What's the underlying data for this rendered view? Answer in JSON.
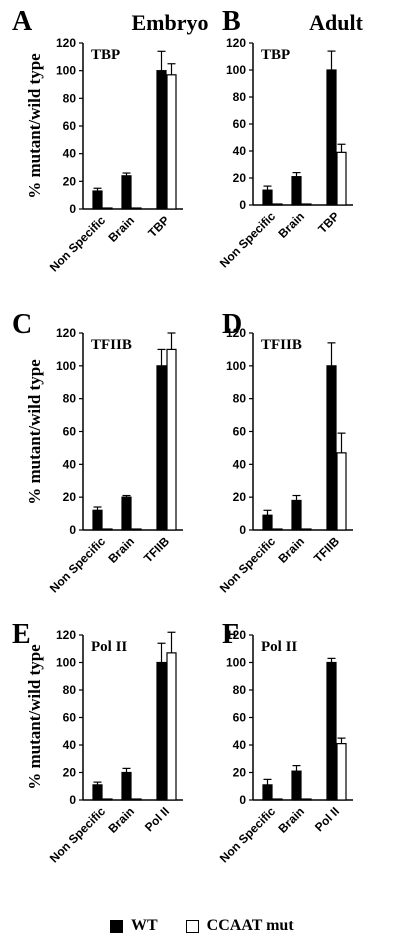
{
  "column_titles": [
    "Embryo",
    "Adult"
  ],
  "ylabel": "% mutant/wild type",
  "legend": [
    {
      "label": "WT",
      "color": "#000000"
    },
    {
      "label": "CCAAT mut",
      "color": "#ffffff"
    }
  ],
  "colors": {
    "wt": "#000000",
    "mut": "#ffffff",
    "axis": "#000000"
  },
  "chart_data": [
    {
      "panel": "A",
      "type": "bar",
      "title": "TBP",
      "categories": [
        "Non Specific",
        "Brain",
        "TBP"
      ],
      "ylim": [
        0,
        120
      ],
      "yticks": [
        0,
        20,
        40,
        60,
        80,
        100,
        120
      ],
      "series": [
        {
          "name": "WT",
          "values": [
            13,
            24,
            100
          ],
          "errors": [
            2,
            2,
            14
          ]
        },
        {
          "name": "CCAAT mut",
          "values": [
            0,
            0,
            97
          ],
          "errors": [
            0,
            0,
            8
          ]
        }
      ]
    },
    {
      "panel": "B",
      "type": "bar",
      "title": "TBP",
      "categories": [
        "Non Specific",
        "Brain",
        "TBP"
      ],
      "ylim": [
        0,
        120
      ],
      "yticks": [
        0,
        20,
        40,
        60,
        80,
        100,
        120
      ],
      "series": [
        {
          "name": "WT",
          "values": [
            11,
            21,
            100
          ],
          "errors": [
            3,
            3,
            14
          ]
        },
        {
          "name": "CCAAT mut",
          "values": [
            0,
            0,
            39
          ],
          "errors": [
            0,
            0,
            6
          ]
        }
      ]
    },
    {
      "panel": "C",
      "type": "bar",
      "title": "TFIIB",
      "categories": [
        "Non Specific",
        "Brain",
        "TFIIB"
      ],
      "ylim": [
        0,
        120
      ],
      "yticks": [
        0,
        20,
        40,
        60,
        80,
        100,
        120
      ],
      "series": [
        {
          "name": "WT",
          "values": [
            12,
            20,
            100
          ],
          "errors": [
            2,
            1,
            10
          ]
        },
        {
          "name": "CCAAT mut",
          "values": [
            0,
            0,
            110
          ],
          "errors": [
            0,
            0,
            10
          ]
        }
      ]
    },
    {
      "panel": "D",
      "type": "bar",
      "title": "TFIIB",
      "categories": [
        "Non Specific",
        "Brain",
        "TFIIB"
      ],
      "ylim": [
        0,
        120
      ],
      "yticks": [
        0,
        20,
        40,
        60,
        80,
        100,
        120
      ],
      "series": [
        {
          "name": "WT",
          "values": [
            9,
            18,
            100
          ],
          "errors": [
            3,
            3,
            14
          ]
        },
        {
          "name": "CCAAT mut",
          "values": [
            0,
            0,
            47
          ],
          "errors": [
            0,
            0,
            12
          ]
        }
      ]
    },
    {
      "panel": "E",
      "type": "bar",
      "title": "Pol II",
      "categories": [
        "Non Specific",
        "Brain",
        "Pol II"
      ],
      "ylim": [
        0,
        120
      ],
      "yticks": [
        0,
        20,
        40,
        60,
        80,
        100,
        120
      ],
      "series": [
        {
          "name": "WT",
          "values": [
            11,
            20,
            100
          ],
          "errors": [
            2,
            3,
            14
          ]
        },
        {
          "name": "CCAAT mut",
          "values": [
            0,
            0,
            107
          ],
          "errors": [
            0,
            0,
            15
          ]
        }
      ]
    },
    {
      "panel": "F",
      "type": "bar",
      "title": "Pol II",
      "categories": [
        "Non Specific",
        "Brain",
        "Pol II"
      ],
      "ylim": [
        0,
        120
      ],
      "yticks": [
        0,
        20,
        40,
        60,
        80,
        100,
        120
      ],
      "series": [
        {
          "name": "WT",
          "values": [
            11,
            21,
            100
          ],
          "errors": [
            4,
            4,
            3
          ]
        },
        {
          "name": "CCAAT mut",
          "values": [
            0,
            0,
            41
          ],
          "errors": [
            0,
            0,
            4
          ]
        }
      ]
    }
  ]
}
